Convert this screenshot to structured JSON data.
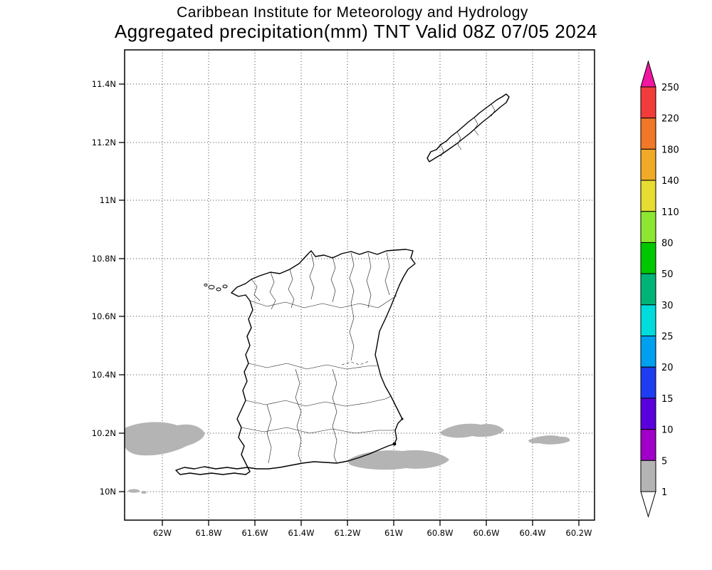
{
  "header": {
    "title_line1": "Caribbean Institute for Meteorology and Hydrology",
    "title_line2": "Aggregated precipitation(mm) TNT Valid 08Z 07/05 2024"
  },
  "axes": {
    "lat_labels": [
      "11.4N",
      "11.2N",
      "11N",
      "10.8N",
      "10.6N",
      "10.4N",
      "10.2N",
      "10N"
    ],
    "lon_labels": [
      "62W",
      "61.8W",
      "61.6W",
      "61.4W",
      "61.2W",
      "61W",
      "60.8W",
      "60.6W",
      "60.4W",
      "60.2W"
    ]
  },
  "colorbar": {
    "tick_labels_top_to_bottom": [
      "250",
      "220",
      "180",
      "140",
      "110",
      "80",
      "50",
      "30",
      "25",
      "20",
      "15",
      "10",
      "5",
      "1"
    ],
    "segment_colors_top_to_bottom": [
      "#f23c3c",
      "#f07828",
      "#f0aa28",
      "#e6dc32",
      "#8ce632",
      "#00c800",
      "#00b478",
      "#00dcdc",
      "#00a0f0",
      "#1e3cf0",
      "#5a00dc",
      "#a000c8",
      "#b4b4b4"
    ],
    "top_arrow_color": "#f016a0",
    "bottom_arrow_color": "#ffffff"
  },
  "colors": {
    "background": "#ffffff",
    "map_outline": "#000000",
    "grid": "#444444",
    "precip_shade": "#b4b4b4"
  },
  "chart_data": {
    "type": "heatmap",
    "title": "Aggregated precipitation(mm) TNT Valid 08Z 07/05 2024",
    "subtitle": "Caribbean Institute for Meteorology and Hydrology",
    "units": "mm",
    "levels": [
      1,
      5,
      10,
      15,
      20,
      25,
      30,
      50,
      80,
      110,
      140,
      180,
      220,
      250
    ],
    "colors_low_to_high": [
      "#ffffff",
      "#b4b4b4",
      "#a000c8",
      "#5a00dc",
      "#1e3cf0",
      "#00a0f0",
      "#00dcdc",
      "#00b478",
      "#00c800",
      "#8ce632",
      "#e6dc32",
      "#f0aa28",
      "#f07828",
      "#f23c3c",
      "#f016a0"
    ],
    "x_axis_ticks": [
      "62W",
      "61.8W",
      "61.6W",
      "61.4W",
      "61.2W",
      "61W",
      "60.8W",
      "60.6W",
      "60.4W",
      "60.2W"
    ],
    "y_axis_ticks": [
      "10N",
      "10.2N",
      "10.4N",
      "10.6N",
      "10.8N",
      "11N",
      "11.2N",
      "11.4N"
    ],
    "grid": "dotted",
    "legend_position": "right colorbar",
    "depicted": "Light gray shaded areas (1-5 mm bin) offshore west, south and southeast of Trinidad; no shading of 5 mm or more anywhere on the map"
  }
}
